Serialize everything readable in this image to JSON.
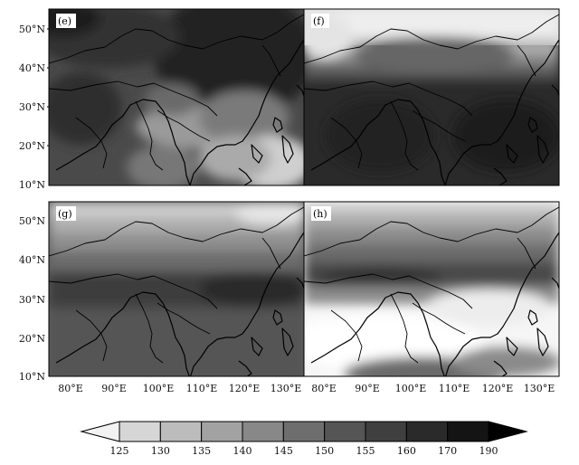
{
  "panels": [
    {
      "label": "(e)"
    },
    {
      "label": "(f)"
    },
    {
      "label": "(g)"
    },
    {
      "label": "(h)"
    }
  ],
  "lat_ticks": [
    "50°N",
    "40°N",
    "30°N",
    "20°N",
    "10°N"
  ],
  "lon_ticks_left": [
    "80°E",
    "90°E",
    "100°E",
    "110°E",
    "120°E",
    "130°E"
  ],
  "lon_ticks_right": [
    "80°E",
    "90°E",
    "100°E",
    "110°E",
    "120°E",
    "130°E"
  ],
  "colorbar": {
    "labels": [
      "125",
      "130",
      "135",
      "140",
      "145",
      "150",
      "155",
      "160",
      "170",
      "190"
    ],
    "colors": [
      "#f2f2f2",
      "#d6d6d6",
      "#bcbcbc",
      "#a2a2a2",
      "#888888",
      "#6e6e6e",
      "#555555",
      "#3f3f3f",
      "#2a2a2a",
      "#141414",
      "#000000"
    ]
  }
}
